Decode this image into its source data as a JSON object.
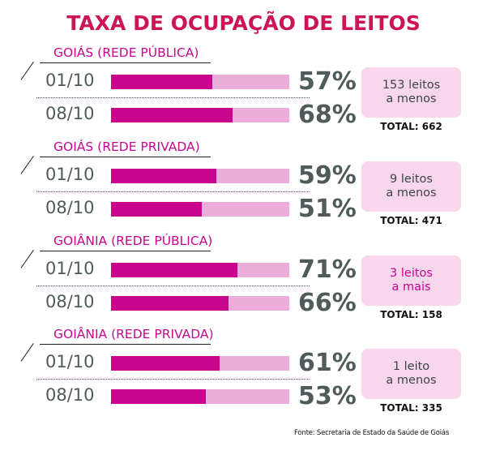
{
  "title": "TAXA DE OCUPAÇÃO DE LEITOS",
  "source": "Fonte: Secretaria de Estado da Saúde de Goiás",
  "colors": {
    "title": "#cc1456",
    "section_label": "#c8078c",
    "bar_fill": "#c8058c",
    "bar_bg": "#ebaedb",
    "box_bg": "#f8d6ec",
    "text_dark": "#4f5b5b"
  },
  "sections": [
    {
      "label": "GOIÁS (REDE PÚBLICA)",
      "rows": [
        {
          "date": "01/10",
          "value": 57,
          "pct_label": "57%"
        },
        {
          "date": "08/10",
          "value": 68,
          "pct_label": "68%"
        }
      ],
      "change_line1": "153 leitos",
      "change_line2": "a menos",
      "change_direction": "down",
      "total": "TOTAL: 662"
    },
    {
      "label": "GOIÁS (REDE PRIVADA)",
      "rows": [
        {
          "date": "01/10",
          "value": 59,
          "pct_label": "59%"
        },
        {
          "date": "08/10",
          "value": 51,
          "pct_label": "51%"
        }
      ],
      "change_line1": "9 leitos",
      "change_line2": "a menos",
      "change_direction": "down",
      "total": "TOTAL: 471"
    },
    {
      "label": "GOIÂNIA (REDE PÚBLICA)",
      "rows": [
        {
          "date": "01/10",
          "value": 71,
          "pct_label": "71%"
        },
        {
          "date": "08/10",
          "value": 66,
          "pct_label": "66%"
        }
      ],
      "change_line1": "3 leitos",
      "change_line2": "a mais",
      "change_direction": "up",
      "total": "TOTAL: 158"
    },
    {
      "label": "GOIÂNIA (REDE PRIVADA)",
      "rows": [
        {
          "date": "01/10",
          "value": 61,
          "pct_label": "61%"
        },
        {
          "date": "08/10",
          "value": 53,
          "pct_label": "53%"
        }
      ],
      "change_line1": "1 leito",
      "change_line2": "a menos",
      "change_direction": "down",
      "total": "TOTAL: 335"
    }
  ],
  "chart_data": {
    "type": "bar",
    "title": "TAXA DE OCUPAÇÃO DE LEITOS",
    "orientation": "horizontal",
    "categories": [
      "01/10",
      "08/10"
    ],
    "unit": "%",
    "ylim": [
      0,
      100
    ],
    "groups": [
      {
        "name": "GOIÁS (REDE PÚBLICA)",
        "values": [
          57,
          68
        ],
        "change": "153 leitos a menos",
        "total": 662
      },
      {
        "name": "GOIÁS (REDE PRIVADA)",
        "values": [
          59,
          51
        ],
        "change": "9 leitos a menos",
        "total": 471
      },
      {
        "name": "GOIÂNIA (REDE PÚBLICA)",
        "values": [
          71,
          66
        ],
        "change": "3 leitos a mais",
        "total": 158
      },
      {
        "name": "GOIÂNIA (REDE PRIVADA)",
        "values": [
          61,
          53
        ],
        "change": "1 leito a menos",
        "total": 335
      }
    ],
    "source": "Fonte: Secretaria de Estado da Saúde de Goiás"
  }
}
